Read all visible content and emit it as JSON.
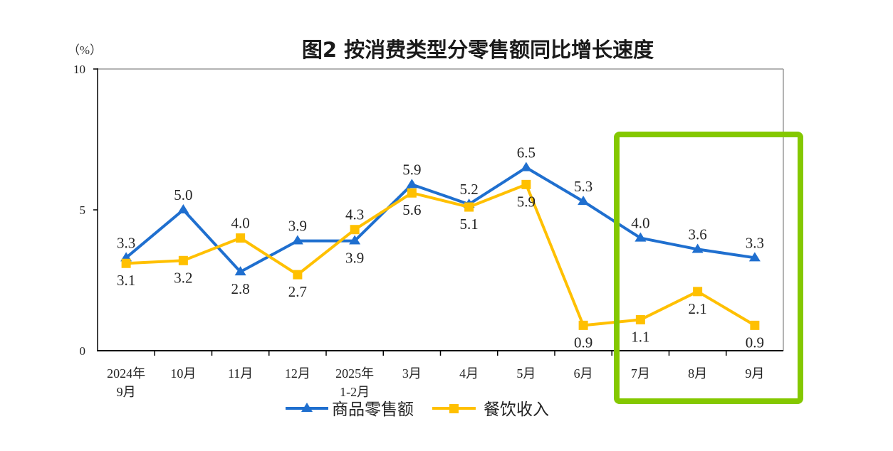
{
  "chart_data": {
    "type": "line",
    "title": "图2 按消费类型分零售额同比增长速度",
    "ylabel": "（%）",
    "xlabel": "",
    "categories": [
      "2024年9月",
      "10月",
      "11月",
      "12月",
      "2025年1-2月",
      "3月",
      "4月",
      "5月",
      "6月",
      "7月",
      "8月",
      "9月"
    ],
    "ylim": [
      0,
      10
    ],
    "yticks": [
      0,
      5,
      10
    ],
    "series": [
      {
        "name": "商品零售额",
        "marker": "triangle",
        "color": "#1f6fcf",
        "values": [
          3.3,
          5.0,
          2.8,
          3.9,
          3.9,
          5.9,
          5.2,
          6.5,
          5.3,
          4.0,
          3.6,
          3.3
        ]
      },
      {
        "name": "餐饮收入",
        "marker": "square",
        "color": "#ffc000",
        "values": [
          3.1,
          3.2,
          4.0,
          2.7,
          4.3,
          5.6,
          5.1,
          5.9,
          0.9,
          1.1,
          2.1,
          0.9
        ]
      }
    ],
    "data_labels": true,
    "legend": "bottom",
    "grid": false
  },
  "colors": {
    "highlight": "#84c800"
  }
}
